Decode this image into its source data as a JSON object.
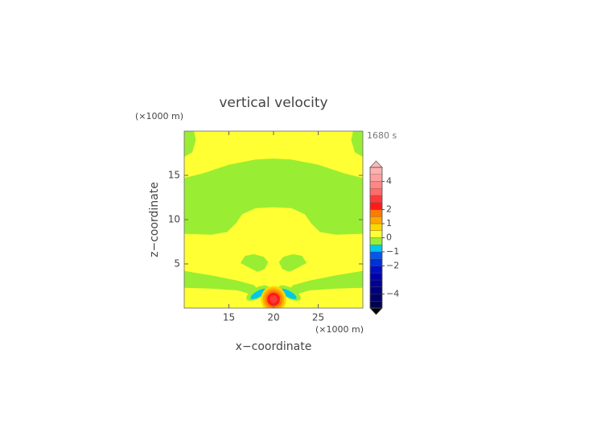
{
  "chart_data": {
    "type": "contour",
    "title": "vertical velocity",
    "x_label": "x−coordinate",
    "y_label": "z−coordinate",
    "x_unit": "(×1000 m)",
    "y_unit": "(×1000 m)",
    "time_label": "1680 s",
    "xlim": [
      10,
      30
    ],
    "ylim": [
      0,
      20
    ],
    "xticks": [
      15,
      20,
      25
    ],
    "yticks": [
      5,
      10,
      15
    ],
    "colorbar": {
      "levels": [
        -5,
        -4.5,
        -4,
        -3.5,
        -3,
        -2.5,
        -2,
        -1.5,
        -1,
        -0.5,
        0,
        0.5,
        1,
        1.5,
        2,
        2.5,
        3,
        3.5,
        4,
        4.5,
        5
      ],
      "colors": [
        "#000050",
        "#000066",
        "#00007c",
        "#000092",
        "#0000a8",
        "#0010c0",
        "#0030d8",
        "#0058ee",
        "#00c8e8",
        "#99ee33",
        "#ffff33",
        "#ffd700",
        "#ffa500",
        "#ff7a00",
        "#ff1a1a",
        "#ff3838",
        "#ff6a6a",
        "#ff8686",
        "#ffa0a0",
        "#ffb0b0"
      ],
      "over_color": "#ffb8b8",
      "under_color": "#000000",
      "ticks": [
        {
          "value": -4,
          "label": "−4"
        },
        {
          "value": -2,
          "label": "−2"
        },
        {
          "value": -1,
          "label": "−1"
        },
        0,
        1,
        2,
        4
      ]
    }
  }
}
